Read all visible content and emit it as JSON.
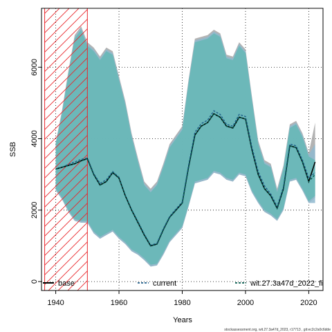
{
  "chart_data": {
    "type": "area",
    "title": "",
    "xlabel": "Years",
    "ylabel": "SSB",
    "xlim": [
      1935.5,
      2024.5
    ],
    "ylim": [
      -250,
      7650
    ],
    "x_ticks": [
      1940,
      1960,
      1980,
      2000,
      2020
    ],
    "y_ticks": [
      0,
      2000,
      4000,
      6000
    ],
    "grid": "dotted",
    "legend_position": "bottom",
    "hatched_region": {
      "x_start": 1936.5,
      "x_end": 1950,
      "color": "#e8252b"
    },
    "years": [
      1940,
      1942,
      1944,
      1946,
      1948,
      1950,
      1952,
      1954,
      1956,
      1958,
      1960,
      1962,
      1964,
      1966,
      1968,
      1970,
      1972,
      1974,
      1976,
      1978,
      1980,
      1982,
      1984,
      1986,
      1988,
      1990,
      1992,
      1994,
      1996,
      1998,
      2000,
      2002,
      2004,
      2006,
      2008,
      2010,
      2012,
      2014,
      2016,
      2018,
      2020,
      2022
    ],
    "series": [
      {
        "name": "base",
        "color": "#000000",
        "dash": "solid",
        "values": [
          3150,
          3200,
          3250,
          3300,
          3380,
          3440,
          3000,
          2700,
          2800,
          3050,
          2900,
          2400,
          2000,
          1650,
          1300,
          1000,
          1050,
          1450,
          1800,
          2000,
          2200,
          3200,
          4100,
          4350,
          4450,
          4700,
          4600,
          4350,
          4300,
          4600,
          4550,
          3700,
          3000,
          2600,
          2400,
          2050,
          2600,
          3800,
          3750,
          3350,
          2800,
          3350
        ],
        "band_upper": [
          3900,
          4800,
          5900,
          6900,
          7150,
          6700,
          6550,
          6300,
          6550,
          6450,
          5750,
          5050,
          4150,
          3450,
          2800,
          2600,
          2800,
          3300,
          3850,
          4100,
          4350,
          5650,
          6800,
          6850,
          6900,
          7050,
          6950,
          6350,
          6300,
          6700,
          6500,
          5200,
          3950,
          3400,
          3300,
          2600,
          3250,
          4400,
          4500,
          4150,
          3600,
          4450
        ],
        "band_lower": [
          2550,
          2300,
          1950,
          1700,
          1650,
          1650,
          1350,
          1200,
          1300,
          1400,
          1200,
          1050,
          850,
          750,
          600,
          420,
          450,
          750,
          1100,
          1300,
          1500,
          2100,
          2750,
          2800,
          2850,
          3050,
          3000,
          2850,
          2800,
          3000,
          2950,
          2500,
          2200,
          1950,
          1850,
          1700,
          2000,
          2800,
          2850,
          2550,
          2200,
          2350
        ],
        "band_color": "#a6a6a6"
      },
      {
        "name": "current",
        "color": "#1f5f8b",
        "dash": "dashed",
        "values": [
          3150,
          3200,
          3280,
          3350,
          3420,
          3460,
          3020,
          2750,
          2850,
          3080,
          2920,
          2420,
          2020,
          1680,
          1330,
          1020,
          1070,
          1480,
          1820,
          2030,
          2230,
          3250,
          4180,
          4420,
          4520,
          4780,
          4680,
          4400,
          4350,
          4680,
          4620,
          3780,
          3080,
          2680,
          2450,
          2100,
          2650,
          3850,
          3800,
          3400,
          2900,
          3050
        ],
        "band_upper": [
          3900,
          4750,
          5850,
          6850,
          7100,
          6650,
          6500,
          6250,
          6500,
          6400,
          5700,
          5000,
          4100,
          3400,
          2750,
          2550,
          2750,
          3250,
          3800,
          4050,
          4300,
          5600,
          6750,
          6800,
          6850,
          7000,
          6900,
          6300,
          6250,
          6650,
          6450,
          5150,
          3900,
          3350,
          3250,
          2550,
          3200,
          4350,
          4450,
          4100,
          3550,
          3850
        ],
        "band_lower": [
          2550,
          2300,
          1950,
          1700,
          1650,
          1650,
          1350,
          1200,
          1300,
          1400,
          1200,
          1050,
          850,
          750,
          600,
          420,
          450,
          750,
          1100,
          1300,
          1500,
          2100,
          2750,
          2800,
          2850,
          3050,
          3000,
          2850,
          2800,
          3000,
          2950,
          2500,
          2200,
          1950,
          1850,
          1700,
          2000,
          2800,
          2850,
          2550,
          2200,
          2200
        ],
        "band_color": "#8fb9cf"
      },
      {
        "name": "wit.27.3a47d_2022_fi",
        "color": "#005a4c",
        "dash": "dashed",
        "values": [
          3150,
          3200,
          3250,
          3300,
          3380,
          3440,
          3000,
          2700,
          2800,
          3050,
          2900,
          2400,
          2000,
          1650,
          1300,
          1000,
          1050,
          1450,
          1800,
          2000,
          2200,
          3200,
          4100,
          4350,
          4450,
          4700,
          4600,
          4350,
          4300,
          4600,
          4550,
          3700,
          3000,
          2600,
          2400,
          2050,
          2600,
          3800,
          3750,
          3350,
          2800,
          3000
        ],
        "band_upper": [
          3850,
          4700,
          5800,
          6800,
          7050,
          6600,
          6450,
          6200,
          6450,
          6350,
          5650,
          4950,
          4050,
          3350,
          2700,
          2500,
          2700,
          3200,
          3750,
          4000,
          4250,
          5550,
          6700,
          6750,
          6800,
          6950,
          6850,
          6250,
          6200,
          6600,
          6400,
          5100,
          3850,
          3300,
          3200,
          2500,
          3150,
          4300,
          4400,
          4050,
          3500,
          3400
        ],
        "band_lower": [
          2600,
          2350,
          2000,
          1750,
          1700,
          1700,
          1400,
          1250,
          1350,
          1450,
          1250,
          1100,
          900,
          800,
          650,
          470,
          500,
          800,
          1150,
          1350,
          1550,
          2150,
          2800,
          2850,
          2900,
          3100,
          3050,
          2900,
          2850,
          3050,
          3000,
          2550,
          2250,
          2000,
          1900,
          1750,
          2050,
          2850,
          2900,
          2600,
          2250,
          2400
        ],
        "band_color": "#5fb8b3"
      }
    ],
    "footnote": "stockassessment.org, wit.27.3a47d_2023, r17713 , git:ec2c2a0c6dde"
  }
}
